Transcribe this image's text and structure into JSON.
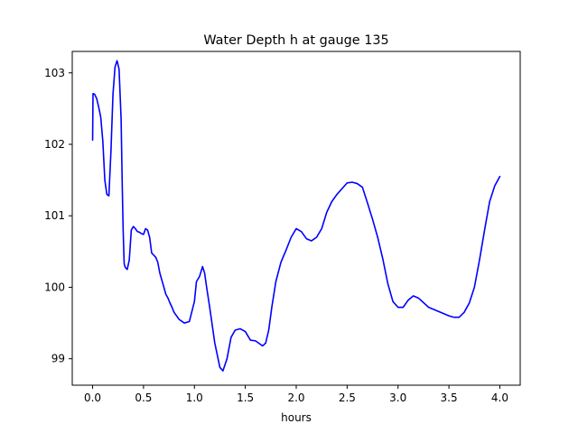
{
  "chart_data": {
    "type": "line",
    "title": "Water Depth h at gauge 135",
    "xlabel": "hours",
    "ylabel": "",
    "xlim": [
      -0.2,
      4.2
    ],
    "ylim": [
      98.63,
      103.3
    ],
    "xticks": [
      {
        "value": 0.0,
        "label": "0.0"
      },
      {
        "value": 0.5,
        "label": "0.5"
      },
      {
        "value": 1.0,
        "label": "1.0"
      },
      {
        "value": 1.5,
        "label": "1.5"
      },
      {
        "value": 2.0,
        "label": "2.0"
      },
      {
        "value": 2.5,
        "label": "2.5"
      },
      {
        "value": 3.0,
        "label": "3.0"
      },
      {
        "value": 3.5,
        "label": "3.5"
      },
      {
        "value": 4.0,
        "label": "4.0"
      }
    ],
    "yticks": [
      {
        "value": 99,
        "label": "99"
      },
      {
        "value": 100,
        "label": "100"
      },
      {
        "value": 101,
        "label": "101"
      },
      {
        "value": 102,
        "label": "102"
      },
      {
        "value": 103,
        "label": "103"
      }
    ],
    "grid": false,
    "series": [
      {
        "color": "#0000ff",
        "x": [
          0.0,
          0.004,
          0.02,
          0.04,
          0.06,
          0.08,
          0.1,
          0.12,
          0.14,
          0.16,
          0.18,
          0.2,
          0.22,
          0.24,
          0.26,
          0.28,
          0.29,
          0.3,
          0.31,
          0.32,
          0.34,
          0.36,
          0.38,
          0.4,
          0.42,
          0.44,
          0.46,
          0.48,
          0.5,
          0.52,
          0.54,
          0.56,
          0.58,
          0.6,
          0.62,
          0.64,
          0.66,
          0.68,
          0.7,
          0.72,
          0.74,
          0.76,
          0.78,
          0.8,
          0.85,
          0.9,
          0.95,
          1.0,
          1.02,
          1.05,
          1.08,
          1.1,
          1.12,
          1.15,
          1.2,
          1.25,
          1.28,
          1.32,
          1.36,
          1.4,
          1.45,
          1.5,
          1.55,
          1.6,
          1.63,
          1.67,
          1.7,
          1.73,
          1.76,
          1.8,
          1.85,
          1.9,
          1.95,
          2.0,
          2.05,
          2.1,
          2.15,
          2.2,
          2.25,
          2.3,
          2.35,
          2.4,
          2.45,
          2.5,
          2.55,
          2.6,
          2.65,
          2.7,
          2.75,
          2.8,
          2.85,
          2.9,
          2.95,
          3.0,
          3.05,
          3.1,
          3.15,
          3.2,
          3.3,
          3.4,
          3.5,
          3.55,
          3.6,
          3.65,
          3.7,
          3.75,
          3.8,
          3.85,
          3.9,
          3.95,
          4.0
        ],
        "values": [
          102.06,
          102.71,
          102.7,
          102.64,
          102.52,
          102.38,
          102.05,
          101.5,
          101.3,
          101.28,
          101.9,
          102.7,
          103.08,
          103.17,
          103.05,
          102.35,
          101.5,
          100.8,
          100.33,
          100.28,
          100.25,
          100.38,
          100.8,
          100.85,
          100.82,
          100.78,
          100.77,
          100.75,
          100.74,
          100.82,
          100.8,
          100.7,
          100.48,
          100.45,
          100.42,
          100.35,
          100.2,
          100.1,
          100.0,
          99.9,
          99.85,
          99.78,
          99.72,
          99.65,
          99.55,
          99.5,
          99.52,
          99.8,
          100.08,
          100.15,
          100.29,
          100.2,
          100.0,
          99.72,
          99.22,
          98.88,
          98.83,
          99.0,
          99.3,
          99.4,
          99.42,
          99.38,
          99.26,
          99.25,
          99.22,
          99.18,
          99.22,
          99.4,
          99.72,
          100.08,
          100.35,
          100.52,
          100.7,
          100.82,
          100.78,
          100.68,
          100.65,
          100.7,
          100.82,
          101.05,
          101.2,
          101.3,
          101.38,
          101.46,
          101.47,
          101.45,
          101.4,
          101.18,
          100.95,
          100.7,
          100.4,
          100.05,
          99.8,
          99.72,
          99.72,
          99.82,
          99.88,
          99.85,
          99.72,
          99.66,
          99.6,
          99.58,
          99.58,
          99.65,
          99.78,
          100.0,
          100.38,
          100.8,
          101.2,
          101.42,
          101.55
        ]
      }
    ]
  }
}
